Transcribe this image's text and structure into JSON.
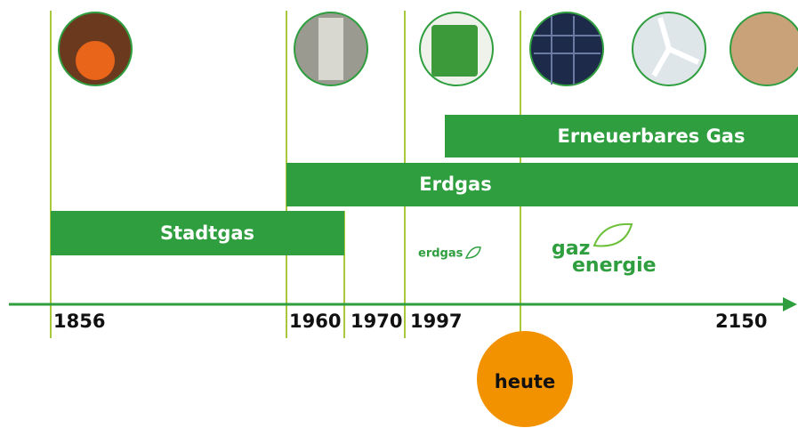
{
  "timeline": {
    "years": [
      "1856",
      "1960",
      "1970",
      "1997",
      "2150"
    ],
    "eras": [
      "Stadtgas",
      "Erdgas",
      "Erneuerbares Gas"
    ],
    "today": "heute",
    "logos": {
      "erdgas": "erdgas",
      "gaz": "gaz",
      "energie": "energie"
    }
  }
}
